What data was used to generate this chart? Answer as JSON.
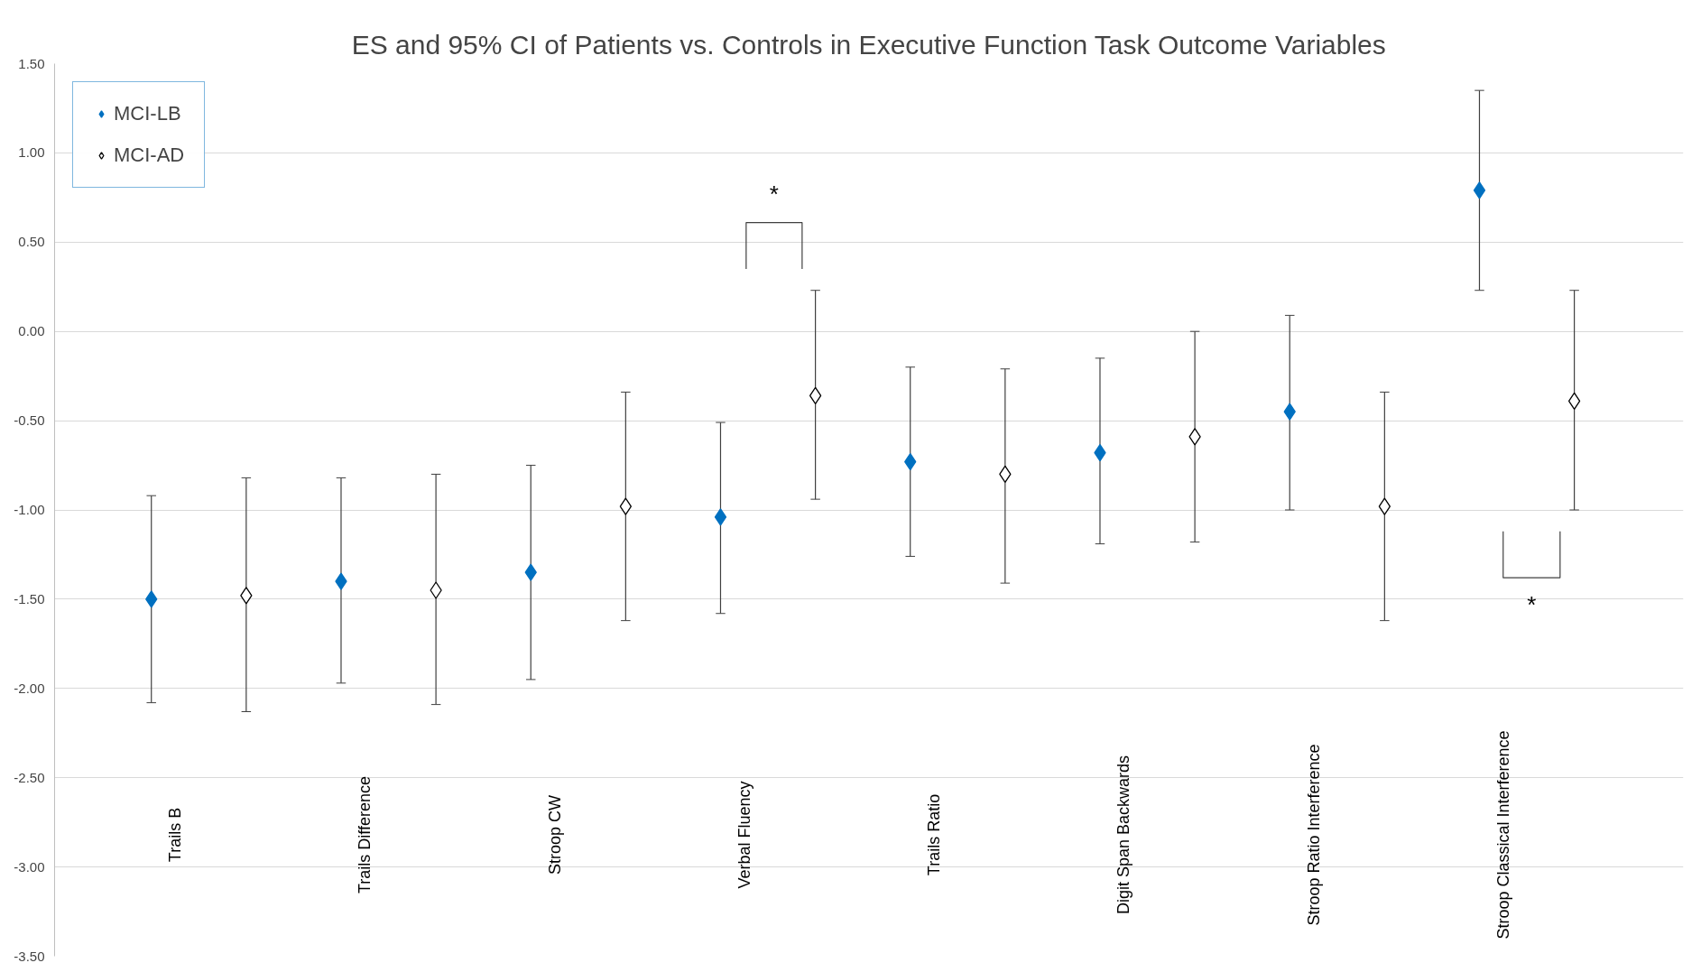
{
  "chart_data": {
    "type": "scatter",
    "title": "ES and 95% CI of Patients vs. Controls in Executive Function Task Outcome Variables",
    "categories": [
      "Trails B",
      null,
      "Trails Difference",
      null,
      "Stroop CW",
      null,
      "Verbal Fluency",
      null,
      "Trails Ratio",
      null,
      "Digit Span Backwards",
      null,
      "Stroop Ratio Interference",
      null,
      "Stroop Classical Interference",
      null
    ],
    "series": [
      {
        "name": "MCI-LB",
        "color": "#0070c0",
        "marker": "diamond",
        "values": [
          -1.5,
          null,
          -1.4,
          null,
          -1.35,
          null,
          -1.04,
          null,
          -0.73,
          null,
          -0.68,
          null,
          -0.45,
          null,
          0.79,
          null
        ],
        "errors": [
          [
            -2.08,
            -0.92
          ],
          null,
          [
            -1.97,
            -0.82
          ],
          null,
          [
            -1.95,
            -0.75
          ],
          null,
          [
            -1.58,
            -0.51
          ],
          null,
          [
            -1.26,
            -0.2
          ],
          null,
          [
            -1.19,
            -0.15
          ],
          null,
          [
            -1.0,
            0.09
          ],
          null,
          [
            0.23,
            1.35
          ],
          null
        ]
      },
      {
        "name": "MCI-AD",
        "color": "#ffffff",
        "marker": "diamond",
        "values": [
          null,
          -1.48,
          null,
          -1.45,
          null,
          -0.98,
          null,
          -0.36,
          null,
          -0.8,
          null,
          -0.59,
          null,
          -0.98,
          null,
          -0.39
        ],
        "errors": [
          null,
          [
            -2.13,
            -0.82
          ],
          null,
          [
            -2.09,
            -0.8
          ],
          null,
          [
            -1.62,
            -0.34
          ],
          null,
          [
            -0.94,
            0.23
          ],
          null,
          [
            -1.41,
            -0.21
          ],
          null,
          [
            -1.18,
            0.0
          ],
          null,
          [
            -1.62,
            -0.34
          ],
          null,
          [
            -1.0,
            0.23
          ]
        ]
      }
    ],
    "ylim": [
      -3.5,
      1.5
    ],
    "yticks": [
      {
        "value": -3.5,
        "label": "-3.50"
      },
      {
        "value": -3.0,
        "label": "-3.00"
      },
      {
        "value": -2.5,
        "label": "-2.50"
      },
      {
        "value": -2.0,
        "label": "-2.00"
      },
      {
        "value": -1.5,
        "label": "-1.50"
      },
      {
        "value": -1.0,
        "label": "-1.00"
      },
      {
        "value": -0.5,
        "label": "-0.50"
      },
      {
        "value": 0.0,
        "label": "0.00"
      },
      {
        "value": 0.5,
        "label": "0.50"
      },
      {
        "value": 1.0,
        "label": "1.00"
      },
      {
        "value": 1.5,
        "label": "1.50"
      }
    ],
    "grid": "y",
    "legend": "top left",
    "tick_labels": "y",
    "annotations": [
      "*",
      "*"
    ]
  }
}
